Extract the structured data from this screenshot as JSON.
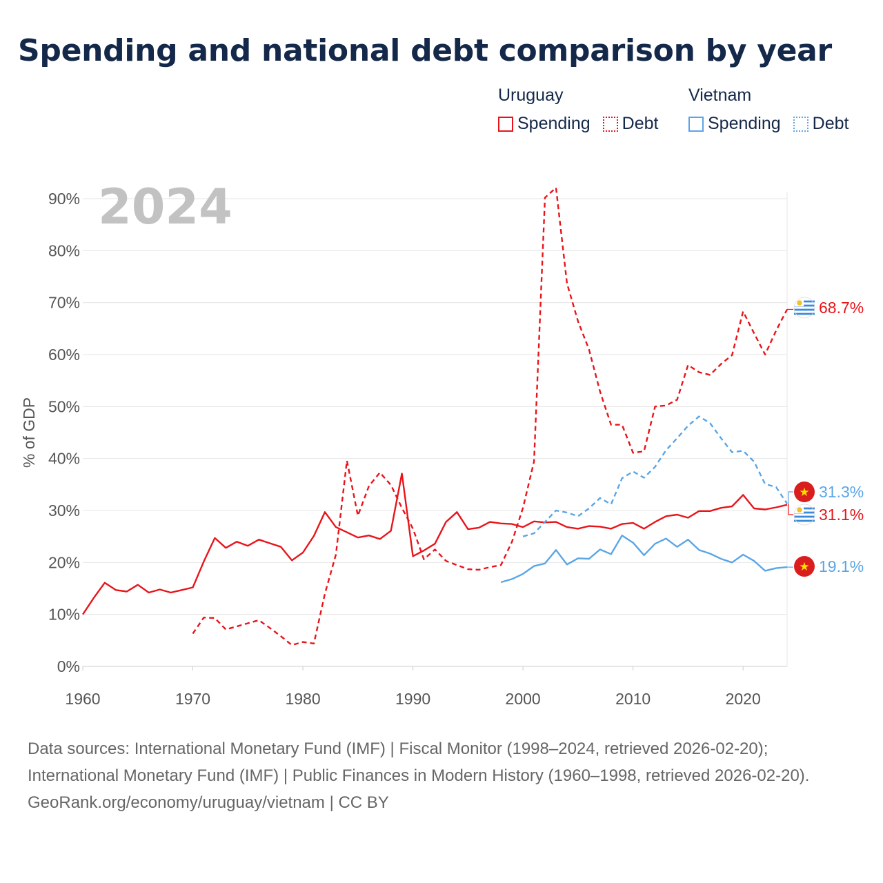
{
  "title": "Spending and national debt comparison by year",
  "legend": {
    "groups": [
      {
        "country": "Uruguay",
        "color": "#e8141a",
        "items": [
          {
            "label": "Spending",
            "style": "solid"
          },
          {
            "label": "Debt",
            "style": "dotted"
          }
        ]
      },
      {
        "country": "Vietnam",
        "color": "#5aa5e6",
        "items": [
          {
            "label": "Spending",
            "style": "solid"
          },
          {
            "label": "Debt",
            "style": "dotted"
          }
        ]
      }
    ]
  },
  "chart_data": {
    "type": "line",
    "year_label": "2024",
    "ylabel": "% of GDP",
    "xlabel": "",
    "xlim": [
      1960,
      2024
    ],
    "ylim": [
      0,
      90
    ],
    "x_ticks": [
      1960,
      1970,
      1980,
      1990,
      2000,
      2010,
      2020
    ],
    "y_ticks": [
      "0%",
      "10%",
      "20%",
      "30%",
      "40%",
      "50%",
      "60%",
      "70%",
      "80%",
      "90%"
    ],
    "grid": true,
    "series": [
      {
        "name": "Uruguay Spending",
        "country": "Uruguay",
        "kind": "Spending",
        "style": "solid",
        "color": "#e8141a",
        "end_label": "31.1%",
        "flag": "uruguay",
        "points": [
          [
            1960,
            10
          ],
          [
            1961,
            13.2
          ],
          [
            1962,
            16.1
          ],
          [
            1963,
            14.7
          ],
          [
            1964,
            14.4
          ],
          [
            1965,
            15.7
          ],
          [
            1966,
            14.2
          ],
          [
            1967,
            14.8
          ],
          [
            1968,
            14.2
          ],
          [
            1969,
            14.7
          ],
          [
            1970,
            15.2
          ],
          [
            1971,
            20.2
          ],
          [
            1972,
            24.7
          ],
          [
            1973,
            22.8
          ],
          [
            1974,
            24.0
          ],
          [
            1975,
            23.2
          ],
          [
            1976,
            24.4
          ],
          [
            1977,
            23.7
          ],
          [
            1978,
            23.0
          ],
          [
            1979,
            20.4
          ],
          [
            1980,
            21.9
          ],
          [
            1981,
            25.1
          ],
          [
            1982,
            29.7
          ],
          [
            1983,
            26.8
          ],
          [
            1984,
            25.8
          ],
          [
            1985,
            24.8
          ],
          [
            1986,
            25.2
          ],
          [
            1987,
            24.5
          ],
          [
            1988,
            26.1
          ],
          [
            1989,
            37.1
          ],
          [
            1990,
            21.2
          ],
          [
            1991,
            22.3
          ],
          [
            1992,
            23.6
          ],
          [
            1993,
            27.8
          ],
          [
            1994,
            29.7
          ],
          [
            1995,
            26.4
          ],
          [
            1996,
            26.7
          ],
          [
            1997,
            27.8
          ],
          [
            1998,
            27.5
          ],
          [
            1999,
            27.4
          ],
          [
            2000,
            26.8
          ],
          [
            2001,
            27.9
          ],
          [
            2002,
            27.7
          ],
          [
            2003,
            27.8
          ],
          [
            2004,
            26.8
          ],
          [
            2005,
            26.5
          ],
          [
            2006,
            27.0
          ],
          [
            2007,
            26.9
          ],
          [
            2008,
            26.5
          ],
          [
            2009,
            27.4
          ],
          [
            2010,
            27.6
          ],
          [
            2011,
            26.5
          ],
          [
            2012,
            27.8
          ],
          [
            2013,
            28.9
          ],
          [
            2014,
            29.2
          ],
          [
            2015,
            28.6
          ],
          [
            2016,
            29.9
          ],
          [
            2017,
            29.9
          ],
          [
            2018,
            30.5
          ],
          [
            2019,
            30.8
          ],
          [
            2020,
            33.0
          ],
          [
            2021,
            30.4
          ],
          [
            2022,
            30.2
          ],
          [
            2023,
            30.6
          ],
          [
            2024,
            31.1
          ]
        ]
      },
      {
        "name": "Uruguay Debt",
        "country": "Uruguay",
        "kind": "Debt",
        "style": "dashed",
        "color": "#e8141a",
        "end_label": "68.7%",
        "flag": "uruguay",
        "points": [
          [
            1970,
            6.3
          ],
          [
            1971,
            9.4
          ],
          [
            1972,
            9.3
          ],
          [
            1973,
            7.1
          ],
          [
            1974,
            7.7
          ],
          [
            1975,
            8.3
          ],
          [
            1976,
            8.9
          ],
          [
            1977,
            7.4
          ],
          [
            1978,
            5.8
          ],
          [
            1979,
            4.1
          ],
          [
            1980,
            4.7
          ],
          [
            1981,
            4.4
          ],
          [
            1982,
            14.0
          ],
          [
            1983,
            21.5
          ],
          [
            1984,
            39.6
          ],
          [
            1985,
            29.0
          ],
          [
            1986,
            34.7
          ],
          [
            1987,
            37.3
          ],
          [
            1988,
            34.9
          ],
          [
            1989,
            30.5
          ],
          [
            1990,
            26.5
          ],
          [
            1991,
            20.6
          ],
          [
            1992,
            22.5
          ],
          [
            1993,
            20.3
          ],
          [
            1994,
            19.5
          ],
          [
            1995,
            18.7
          ],
          [
            1996,
            18.6
          ],
          [
            1997,
            19.1
          ],
          [
            1998,
            19.5
          ],
          [
            1999,
            24.0
          ],
          [
            2000,
            30.5
          ],
          [
            2001,
            39.4
          ],
          [
            2002,
            90.2
          ],
          [
            2003,
            92.1
          ],
          [
            2004,
            73.7
          ],
          [
            2005,
            66.4
          ],
          [
            2006,
            61.0
          ],
          [
            2007,
            52.9
          ],
          [
            2008,
            46.5
          ],
          [
            2009,
            46.5
          ],
          [
            2010,
            41.1
          ],
          [
            2011,
            41.4
          ],
          [
            2012,
            50.0
          ],
          [
            2013,
            50.2
          ],
          [
            2014,
            51.3
          ],
          [
            2015,
            58.0
          ],
          [
            2016,
            56.6
          ],
          [
            2017,
            56.1
          ],
          [
            2018,
            58.2
          ],
          [
            2019,
            59.9
          ],
          [
            2020,
            68.3
          ],
          [
            2021,
            64.1
          ],
          [
            2022,
            60.0
          ],
          [
            2023,
            64.6
          ],
          [
            2024,
            68.7
          ]
        ]
      },
      {
        "name": "Vietnam Spending",
        "country": "Vietnam",
        "kind": "Spending",
        "style": "solid",
        "color": "#5aa5e6",
        "end_label": "19.1%",
        "flag": "vietnam",
        "points": [
          [
            1998,
            16.2
          ],
          [
            1999,
            16.8
          ],
          [
            2000,
            17.8
          ],
          [
            2001,
            19.3
          ],
          [
            2002,
            19.8
          ],
          [
            2003,
            22.4
          ],
          [
            2004,
            19.6
          ],
          [
            2005,
            20.8
          ],
          [
            2006,
            20.7
          ],
          [
            2007,
            22.5
          ],
          [
            2008,
            21.6
          ],
          [
            2009,
            25.2
          ],
          [
            2010,
            23.8
          ],
          [
            2011,
            21.4
          ],
          [
            2012,
            23.6
          ],
          [
            2013,
            24.6
          ],
          [
            2014,
            23.0
          ],
          [
            2015,
            24.4
          ],
          [
            2016,
            22.4
          ],
          [
            2017,
            21.7
          ],
          [
            2018,
            20.7
          ],
          [
            2019,
            20.0
          ],
          [
            2020,
            21.5
          ],
          [
            2021,
            20.3
          ],
          [
            2022,
            18.4
          ],
          [
            2023,
            18.9
          ],
          [
            2024,
            19.1
          ]
        ]
      },
      {
        "name": "Vietnam Debt",
        "country": "Vietnam",
        "kind": "Debt",
        "style": "dashed",
        "color": "#5aa5e6",
        "end_label": "31.3%",
        "flag": "vietnam",
        "points": [
          [
            2000,
            25.0
          ],
          [
            2001,
            25.6
          ],
          [
            2002,
            27.8
          ],
          [
            2003,
            30.0
          ],
          [
            2004,
            29.6
          ],
          [
            2005,
            28.9
          ],
          [
            2006,
            30.4
          ],
          [
            2007,
            32.4
          ],
          [
            2008,
            31.2
          ],
          [
            2009,
            36.2
          ],
          [
            2010,
            37.5
          ],
          [
            2011,
            36.3
          ],
          [
            2012,
            38.4
          ],
          [
            2013,
            41.6
          ],
          [
            2014,
            43.9
          ],
          [
            2015,
            46.3
          ],
          [
            2016,
            48.1
          ],
          [
            2017,
            46.8
          ],
          [
            2018,
            43.9
          ],
          [
            2019,
            41.2
          ],
          [
            2020,
            41.5
          ],
          [
            2021,
            39.4
          ],
          [
            2022,
            35.1
          ],
          [
            2023,
            34.5
          ],
          [
            2024,
            31.3
          ]
        ]
      }
    ]
  },
  "footer": {
    "sources": "Data sources: International Monetary Fund (IMF) | Fiscal Monitor (1998–2024, retrieved 2026-02-20); International Monetary Fund (IMF) | Public Finances in Modern History (1960–1998, retrieved 2026-02-20).",
    "credit": "GeoRank.org/economy/uruguay/vietnam | CC BY"
  }
}
